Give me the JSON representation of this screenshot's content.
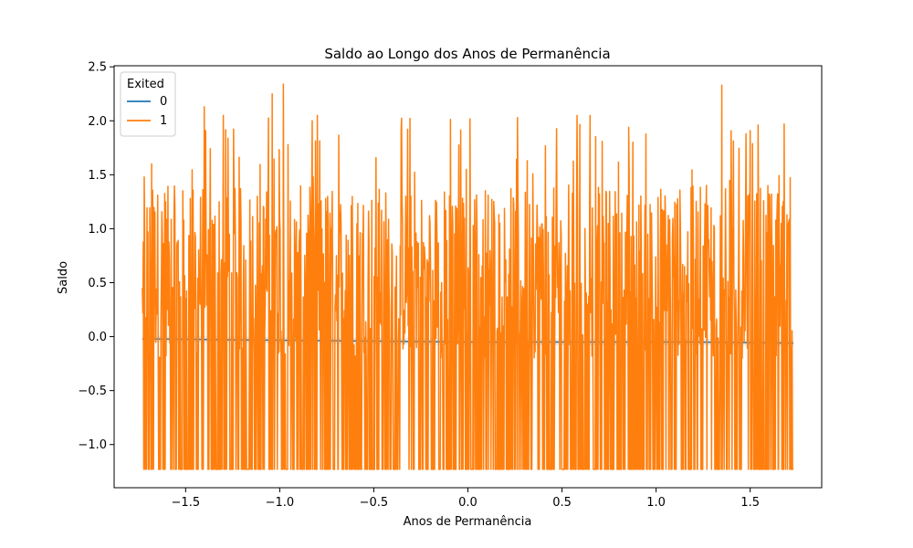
{
  "chart_data": {
    "type": "line",
    "title": "Saldo ao Longo dos Anos de Permanência",
    "xlabel": "Anos de Permanência",
    "ylabel": "Saldo",
    "xlim": [
      -1.88,
      1.88
    ],
    "ylim": [
      -1.4,
      2.51
    ],
    "x_ticks": [
      -1.5,
      -1.0,
      -0.5,
      0.0,
      0.5,
      1.0,
      1.5
    ],
    "x_tick_labels": [
      "−1.5",
      "−1.0",
      "−0.5",
      "0.0",
      "0.5",
      "1.0",
      "1.5"
    ],
    "y_ticks": [
      -1.0,
      -0.5,
      0.0,
      0.5,
      1.0,
      1.5,
      2.0,
      2.5
    ],
    "y_tick_labels": [
      "−1.0",
      "−0.5",
      "0.0",
      "0.5",
      "1.0",
      "1.5",
      "2.0",
      "2.5"
    ],
    "grid": false,
    "legend": {
      "title": "Exited",
      "placement": "top-left",
      "entries": [
        {
          "label": "0",
          "color": "#1f77b4"
        },
        {
          "label": "1",
          "color": "#ff7f0e"
        }
      ]
    },
    "series": [
      {
        "name": "0",
        "color": "#1f77b4",
        "x": [
          -1.73,
          -1.2,
          -0.6,
          0.0,
          0.6,
          1.2,
          1.73
        ],
        "y": [
          -0.02,
          -0.03,
          -0.04,
          -0.05,
          -0.05,
          -0.05,
          -0.06
        ]
      },
      {
        "name": "1",
        "color": "#ff7f0e",
        "x_range": [
          -1.73,
          1.73
        ],
        "y_min": -1.23,
        "y_max": 2.34,
        "peaks": [
          {
            "x": -1.72,
            "y": 1.48
          },
          {
            "x": -1.68,
            "y": 1.6
          },
          {
            "x": -1.4,
            "y": 2.13
          },
          {
            "x": -1.3,
            "y": 2.05
          },
          {
            "x": -1.04,
            "y": 2.25
          },
          {
            "x": -0.98,
            "y": 2.34
          },
          {
            "x": -0.8,
            "y": 2.05
          },
          {
            "x": 0.58,
            "y": 2.05
          },
          {
            "x": 0.65,
            "y": 2.05
          },
          {
            "x": 1.35,
            "y": 2.33
          },
          {
            "x": 1.68,
            "y": 1.97
          }
        ]
      }
    ]
  }
}
